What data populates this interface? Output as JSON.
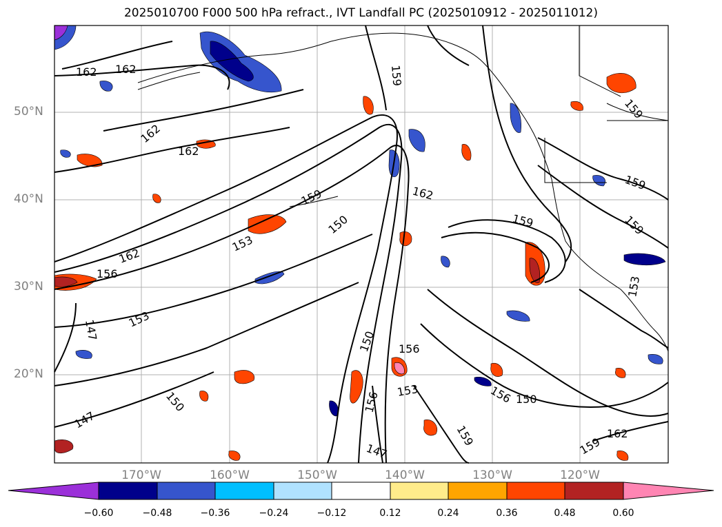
{
  "title": "2025010700 F000 500 hPa refract., IVT Landfall PC (2025010912 - 2025011012)",
  "lat_labels": [
    "50°N",
    "40°N",
    "30°N",
    "20°N"
  ],
  "lon_labels": [
    "170°W",
    "160°W",
    "150°W",
    "140°W",
    "130°W",
    "120°W"
  ],
  "contour_labels": [
    "162",
    "162",
    "162",
    "162",
    "159",
    "159",
    "162",
    "159",
    "150",
    "153",
    "162",
    "156",
    "147",
    "153",
    "150",
    "147",
    "150",
    "156",
    "153",
    "156",
    "156",
    "150",
    "159",
    "162",
    "147",
    "159",
    "159",
    "159",
    "159",
    "153"
  ],
  "colorbar": {
    "ticks": [
      "−0.60",
      "−0.48",
      "−0.36",
      "−0.24",
      "−0.12",
      "0.12",
      "0.24",
      "0.36",
      "0.48",
      "0.60"
    ],
    "colors": [
      "#9b30d9",
      "#00008b",
      "#3655cd",
      "#00bfff",
      "#b0e2ff",
      "#ffffff",
      "#ffec8b",
      "#ffa500",
      "#ff4500",
      "#b22222",
      "#ff85b3"
    ]
  }
}
